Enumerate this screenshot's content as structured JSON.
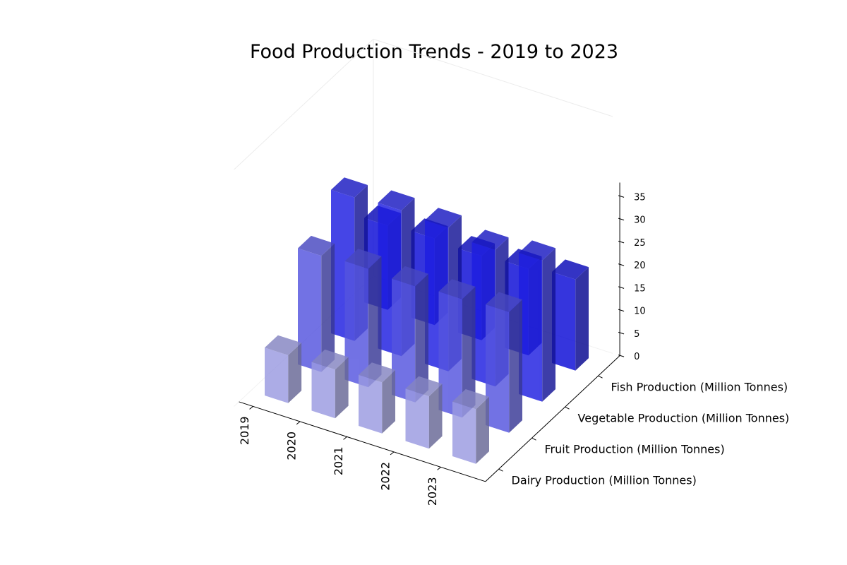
{
  "chart_data": {
    "type": "bar3d",
    "title": "Food Production Trends - 2019 to 2023",
    "x_categories": [
      "2019",
      "2020",
      "2021",
      "2022",
      "2023"
    ],
    "y_categories": [
      "Dairy Production (Million Tonnes)",
      "Fruit Production (Million Tonnes)",
      "Vegetable Production (Million Tonnes)",
      "Fish Production (Million Tonnes)"
    ],
    "z_ticks": [
      "0",
      "5",
      "10",
      "15",
      "20",
      "25",
      "30",
      "35"
    ],
    "zlim": [
      0,
      38
    ],
    "series": [
      {
        "name": "Dairy Production (Million Tonnes)",
        "values": [
          10.5,
          10.7,
          11.2,
          11.5,
          12.0
        ],
        "color": "#a6a6f2"
      },
      {
        "name": "Fruit Production (Million Tonnes)",
        "values": [
          25.5,
          26.0,
          25.5,
          26.0,
          26.5
        ],
        "color": "#5a5af0"
      },
      {
        "name": "Vegetable Production (Million Tonnes)",
        "values": [
          31.5,
          32.0,
          31.5,
          30.0,
          31.0
        ],
        "color": "#1f1ff2"
      },
      {
        "name": "Fish Production (Million Tonnes)",
        "values": [
          18.5,
          19.0,
          18.5,
          19.0,
          20.0
        ],
        "color": "#0a0ae6"
      }
    ]
  }
}
